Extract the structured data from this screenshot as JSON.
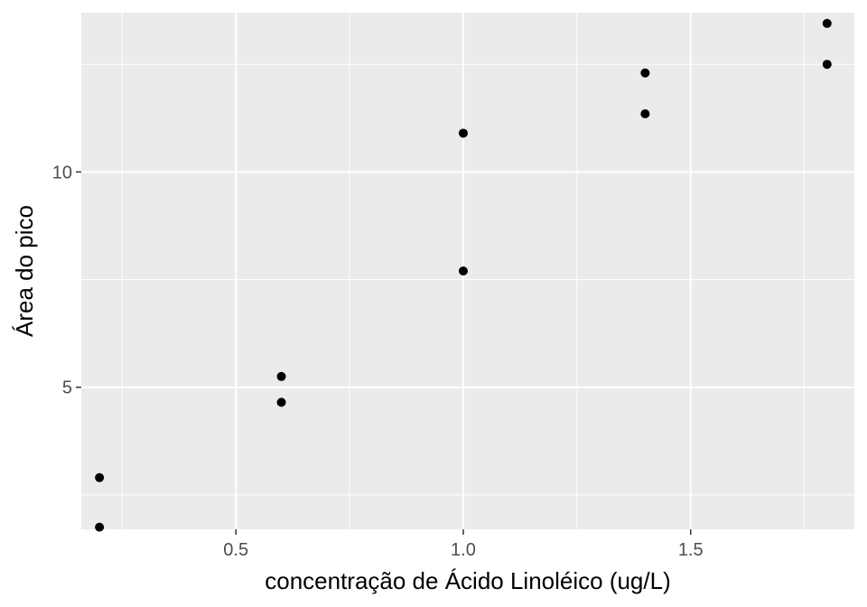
{
  "chart_data": {
    "type": "scatter",
    "xlabel": "concentração de Ácido Linoléico (ug/L)",
    "ylabel": "Área do pico",
    "xlim": [
      0.16,
      1.86
    ],
    "ylim": [
      1.7,
      13.7
    ],
    "xticks": [
      0.5,
      1.0,
      1.5
    ],
    "xtick_labels": [
      "0.5",
      "1.0",
      "1.5"
    ],
    "xminor": [
      0.25,
      0.75,
      1.25,
      1.75
    ],
    "yticks": [
      5,
      10
    ],
    "ytick_labels": [
      "5",
      "10"
    ],
    "yminor": [
      2.5,
      7.5,
      12.5
    ],
    "grid": true,
    "points": [
      {
        "x": 0.2,
        "y": 2.9
      },
      {
        "x": 0.2,
        "y": 1.75
      },
      {
        "x": 0.6,
        "y": 5.25
      },
      {
        "x": 0.6,
        "y": 4.65
      },
      {
        "x": 1.0,
        "y": 10.9
      },
      {
        "x": 1.0,
        "y": 7.7
      },
      {
        "x": 1.4,
        "y": 12.3
      },
      {
        "x": 1.4,
        "y": 11.35
      },
      {
        "x": 1.8,
        "y": 13.45
      },
      {
        "x": 1.8,
        "y": 12.5
      }
    ],
    "colors": {
      "panel": "#ebebeb",
      "grid": "#ffffff",
      "point": "#000000"
    }
  }
}
